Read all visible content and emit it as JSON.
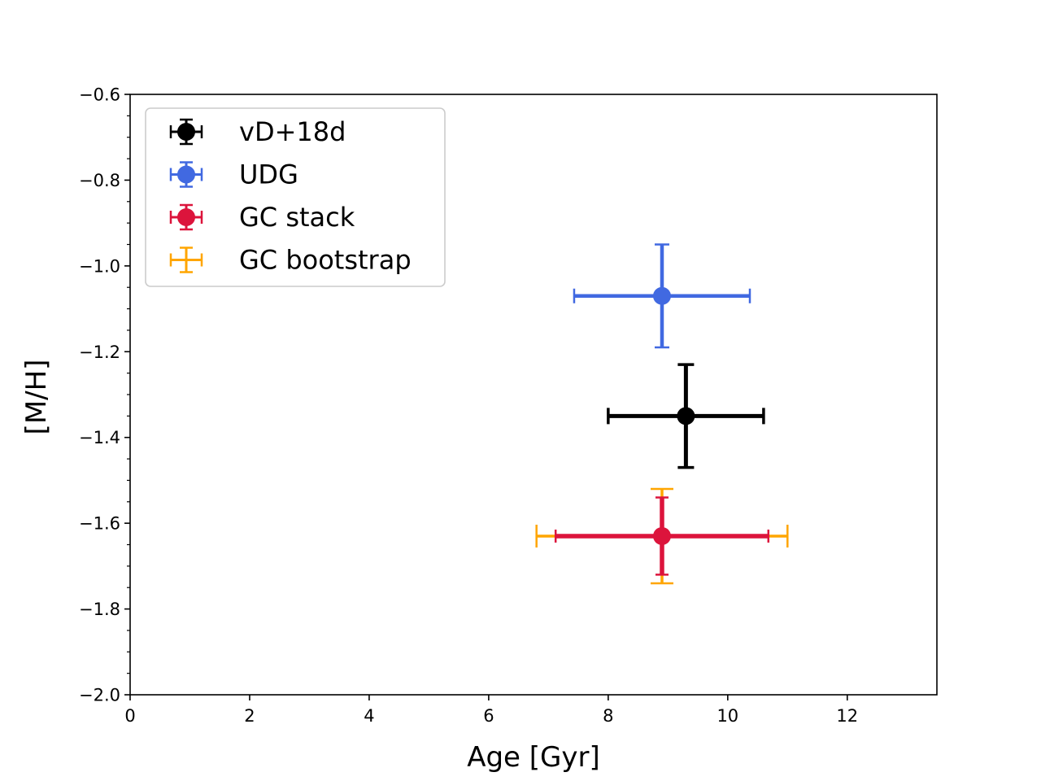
{
  "chart_data": {
    "type": "scatter",
    "title": "",
    "xlabel": "Age [Gyr]",
    "ylabel": "[M/H]",
    "xlim": [
      0,
      13.5
    ],
    "ylim": [
      -2.0,
      -0.6
    ],
    "x_ticks": [
      0,
      2,
      4,
      6,
      8,
      10,
      12
    ],
    "x_tick_labels": [
      "0",
      "2",
      "4",
      "6",
      "8",
      "10",
      "12"
    ],
    "y_ticks": [
      -0.6,
      -0.8,
      -1.0,
      -1.2,
      -1.4,
      -1.6,
      -1.8,
      -2.0
    ],
    "y_tick_labels": [
      "−0.6",
      "−0.8",
      "−1.0",
      "−1.2",
      "−1.4",
      "−1.6",
      "−1.8",
      "−2.0"
    ],
    "grid": false,
    "legend_position": "top-left",
    "series": [
      {
        "name": "vD+18d",
        "color": "#000000",
        "x": 9.3,
        "y": -1.35,
        "xerr": [
          1.3,
          1.3
        ],
        "yerr": [
          0.12,
          0.12
        ],
        "marker": true
      },
      {
        "name": "UDG",
        "color": "#4169e1",
        "x": 8.9,
        "y": -1.07,
        "xerr": [
          1.47,
          1.47
        ],
        "yerr": [
          0.12,
          0.12
        ],
        "marker": true
      },
      {
        "name": "GC stack",
        "color": "#dc143c",
        "x": 8.9,
        "y": -1.63,
        "xerr": [
          1.78,
          1.78
        ],
        "yerr": [
          0.09,
          0.09
        ],
        "marker": true
      },
      {
        "name": "GC bootstrap",
        "color": "#ffa500",
        "x": 8.9,
        "y": -1.63,
        "xerr": [
          2.1,
          2.1
        ],
        "yerr": [
          0.11,
          0.11
        ],
        "marker": false
      }
    ]
  }
}
